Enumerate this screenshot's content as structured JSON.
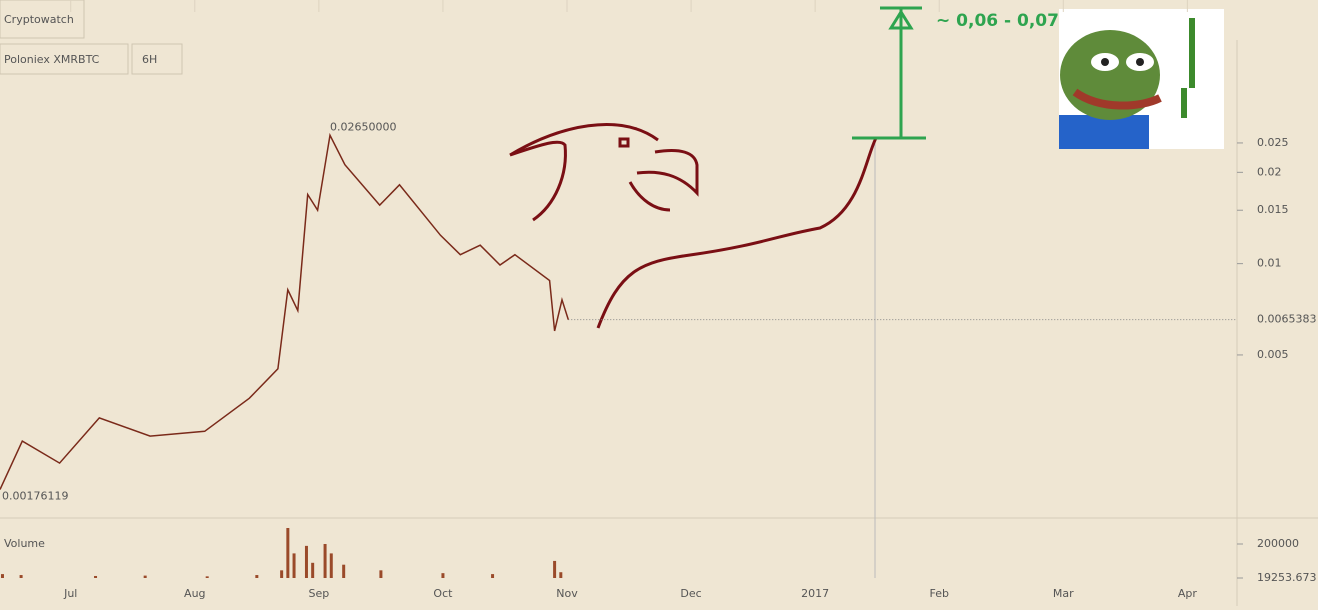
{
  "header": {
    "brand": "Cryptowatch",
    "market": "Poloniex XMRBTC",
    "interval": "6H"
  },
  "chart_data": {
    "type": "line",
    "x": [
      6.43,
      6.61,
      6.91,
      7.23,
      7.64,
      8.08,
      8.44,
      8.67,
      8.75,
      8.83,
      8.91,
      8.99,
      9.09,
      9.21,
      9.49,
      9.65,
      9.98,
      10.14,
      10.3,
      10.46,
      10.58,
      10.86,
      10.9,
      10.96,
      11.01
    ],
    "series": [
      {
        "name": "XMRBTC",
        "color": "#7a2a1a",
        "values": [
          0.0018,
          0.0026,
          0.0022,
          0.0031,
          0.0027,
          0.0028,
          0.0036,
          0.0045,
          0.0082,
          0.007,
          0.0169,
          0.015,
          0.0265,
          0.0212,
          0.0156,
          0.0182,
          0.0124,
          0.0107,
          0.0115,
          0.0099,
          0.0107,
          0.0088,
          0.006,
          0.0076,
          0.0065383
        ]
      }
    ],
    "log_scale": true,
    "xlim": [
      6.43,
      16.4
    ],
    "xticks": [
      {
        "value": 7,
        "label": "Jul"
      },
      {
        "value": 8,
        "label": "Aug"
      },
      {
        "value": 9,
        "label": "Sep"
      },
      {
        "value": 10,
        "label": "Oct"
      },
      {
        "value": 11,
        "label": "Nov"
      },
      {
        "value": 12,
        "label": "Dec"
      },
      {
        "value": 13,
        "label": "2017"
      },
      {
        "value": 14,
        "label": "Feb"
      },
      {
        "value": 15,
        "label": "Mar"
      },
      {
        "value": 16,
        "label": "Apr"
      }
    ],
    "ylim": [
      0.00145,
      0.074
    ],
    "yticks": [
      0.005,
      0.01,
      0.015,
      0.02,
      0.025
    ],
    "high_label": {
      "value": 0.0265,
      "label": "0.02650000"
    },
    "low_label": {
      "value": 0.00176119,
      "label": "0.00176119"
    },
    "last_price": 0.0065383,
    "volume": {
      "title": "Volume",
      "ylim": [
        19253.673,
        285000
      ],
      "yticks": [
        200000,
        19253.673
      ],
      "x": [
        6.45,
        6.6,
        7.2,
        7.6,
        8.1,
        8.5,
        8.7,
        8.75,
        8.8,
        8.9,
        8.95,
        9.05,
        9.1,
        9.2,
        9.5,
        10.0,
        10.4,
        10.9,
        10.95
      ],
      "values": [
        40000,
        35000,
        30000,
        32000,
        28000,
        35000,
        60000,
        285000,
        150000,
        190000,
        100000,
        200000,
        150000,
        90000,
        60000,
        45000,
        40000,
        110000,
        50000
      ],
      "color": "#9a4a2a"
    },
    "annotation": "~ 0,06 - 0,07"
  }
}
